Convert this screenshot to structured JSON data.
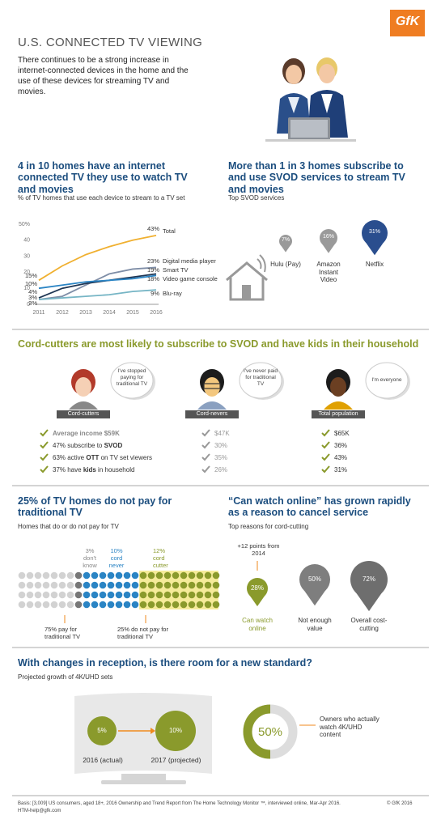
{
  "header": {
    "logo": "GfK",
    "title": "U.S. CONNECTED TV VIEWING",
    "intro": "There continues to be a strong increase in internet-connected devices in the home and the use of these devices for streaming TV and movies."
  },
  "connected_tv": {
    "heading": "4 in 10 homes have an internet connected TV they use to watch TV and movies",
    "subheading": "% of TV homes that use each device to stream to a TV set"
  },
  "chart_data": {
    "type": "line",
    "categories": [
      "2011",
      "2012",
      "2013",
      "2014",
      "2015",
      "2016"
    ],
    "ylim": [
      0,
      50
    ],
    "yticks": [
      0,
      10,
      20,
      30,
      40,
      {
        "value": 50,
        "label": "50%"
      }
    ],
    "grid": false,
    "series": [
      {
        "name": "Total",
        "color": "#f0b030",
        "values": [
          15,
          24,
          31,
          36,
          40,
          43
        ],
        "value_labels": [
          "15%",
          null,
          null,
          null,
          null,
          "43%"
        ]
      },
      {
        "name": "Digital media player",
        "color": "#7f8ea7",
        "values": [
          3,
          5,
          12,
          19,
          22,
          23
        ],
        "value_labels": [
          "3%",
          null,
          null,
          null,
          null,
          "23%"
        ]
      },
      {
        "name": "Smart TV",
        "color": "#1e3553",
        "values": [
          4,
          10,
          13,
          15,
          17,
          19
        ],
        "value_labels": [
          "4%",
          null,
          null,
          null,
          null,
          "19%"
        ]
      },
      {
        "name": "Video game console",
        "color": "#2a84c4",
        "values": [
          10,
          12,
          14,
          15,
          16,
          18
        ],
        "value_labels": [
          "10%",
          null,
          null,
          null,
          null,
          "18%"
        ]
      },
      {
        "name": "Blu-ray",
        "color": "#76b5c5",
        "values": [
          3,
          4,
          5,
          6,
          8,
          9
        ],
        "value_labels": [
          "3%",
          null,
          null,
          null,
          null,
          "9%"
        ]
      }
    ]
  },
  "svod": {
    "heading": "More than 1 in 3 homes subscribe to and use SVOD services to stream TV and movies",
    "subheading": "Top SVOD services",
    "services": [
      {
        "share": "7%",
        "name": "Hulu (Pay)"
      },
      {
        "share": "16%",
        "name": "Amazon Instant Video"
      },
      {
        "share": "31%",
        "name": "Netflix"
      }
    ]
  },
  "segments": {
    "heading": "Cord-cutters are most likely to subscribe to SVOD and have kids in their household",
    "groups": [
      {
        "quote": "I've stopped paying for traditional TV",
        "label": "Cord-cutters",
        "stats": [
          [
            "Average income $59K"
          ],
          [
            "47% subscribe to ",
            "SVOD"
          ],
          [
            "63% active ",
            "OTT",
            " on TV set viewers"
          ],
          [
            "37% have ",
            "kids",
            " in household"
          ]
        ]
      },
      {
        "quote": "I've never paid for traditional TV",
        "label": "Cord-nevers",
        "stats": [
          [
            "$47K"
          ],
          [
            "30%"
          ],
          [
            "35%"
          ],
          [
            "26%"
          ]
        ]
      },
      {
        "quote": "I'm everyone",
        "label": "Total population",
        "stats": [
          [
            "$65K"
          ],
          [
            "36%"
          ],
          [
            "43%"
          ],
          [
            "31%"
          ]
        ]
      }
    ]
  },
  "payment": {
    "heading": "25% of TV homes do not pay for traditional TV",
    "subheading": "Homes that do or do not pay for TV",
    "dont_know": "3% don't know",
    "cord_never": "10% cord never",
    "cord_cutter": "12% cord cutter",
    "pay": "75% pay for traditional TV",
    "no_pay": "25% do not pay for traditional TV"
  },
  "reasons": {
    "heading": "“Can watch online” has grown rapidly as a reason to cancel service",
    "subheading": "Top reasons for cord-cutting",
    "note": "+12 points from 2014",
    "items": [
      {
        "share": "28%",
        "label": "Can watch online"
      },
      {
        "share": "50%",
        "label": "Not enough value"
      },
      {
        "share": "72%",
        "label": "Overall cost-cutting"
      }
    ]
  },
  "uhd": {
    "heading": "With changes in reception, is there room for a new standard?",
    "subheading": "Projected growth of 4K/UHD sets",
    "years": [
      {
        "share": "5%",
        "label": "2016 (actual)"
      },
      {
        "share": "10%",
        "label": "2017 (projected)"
      }
    ],
    "watch_share": "50%",
    "watch_label": "Owners who actually watch 4K/UHD content"
  },
  "footer": {
    "basis": "Basis: [3,009] US consumers, aged 18+, 2016 Ownership and Trend Report from The Home Technology Monitor ™, interviewed online, Mar-Apr 2016.",
    "email": "HTM-help@gfk.com",
    "copyright": "© GfK 2016"
  }
}
